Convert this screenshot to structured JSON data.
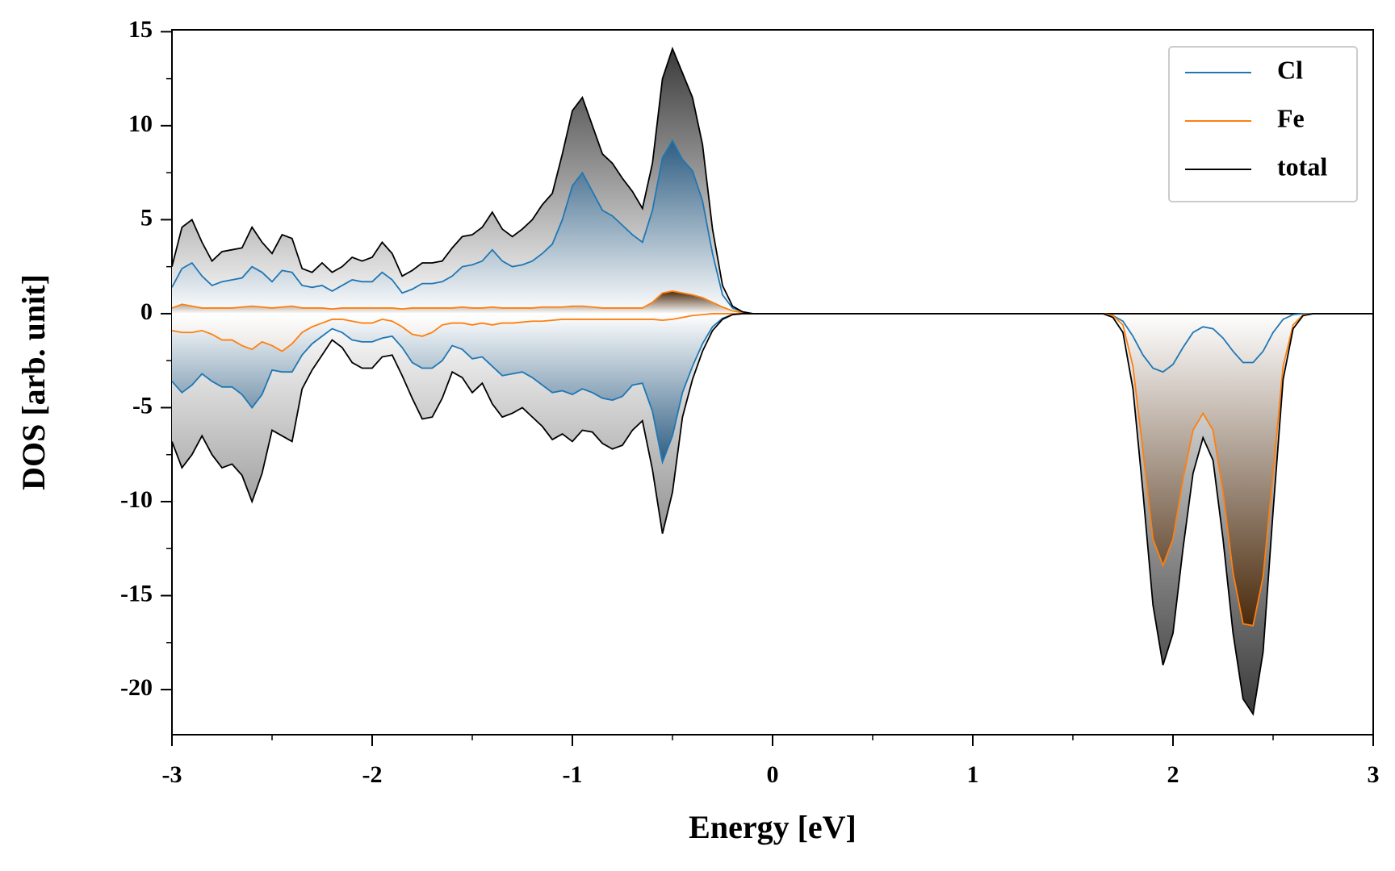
{
  "chart_data": {
    "type": "dos",
    "xlabel": "Energy [eV]",
    "ylabel": "DOS [arb. unit]",
    "xlim": [
      -3,
      3
    ],
    "ylim": [
      -22.4,
      15.1
    ],
    "xticks": [
      -3,
      -2,
      -1,
      0,
      1,
      2,
      3
    ],
    "xticks_minor": [
      -2.5,
      -1.5,
      -0.5,
      0.5,
      1.5,
      2.5
    ],
    "yticks": [
      -20,
      -15,
      -10,
      -5,
      0,
      5,
      10,
      15
    ],
    "yticks_minor": [
      -22.5,
      -17.5,
      -12.5,
      -7.5,
      -2.5,
      2.5,
      7.5,
      12.5
    ],
    "legend": "upper right",
    "x": [
      -3.0,
      -2.95,
      -2.9,
      -2.85,
      -2.8,
      -2.75,
      -2.7,
      -2.65,
      -2.6,
      -2.55,
      -2.5,
      -2.45,
      -2.4,
      -2.35,
      -2.3,
      -2.25,
      -2.2,
      -2.15,
      -2.1,
      -2.05,
      -2.0,
      -1.95,
      -1.9,
      -1.85,
      -1.8,
      -1.75,
      -1.7,
      -1.65,
      -1.6,
      -1.55,
      -1.5,
      -1.45,
      -1.4,
      -1.35,
      -1.3,
      -1.25,
      -1.2,
      -1.15,
      -1.1,
      -1.05,
      -1.0,
      -0.95,
      -0.9,
      -0.85,
      -0.8,
      -0.75,
      -0.7,
      -0.65,
      -0.6,
      -0.55,
      -0.5,
      -0.45,
      -0.4,
      -0.35,
      -0.3,
      -0.25,
      -0.2,
      -0.15,
      -0.1,
      -0.05,
      0.0,
      0.05,
      0.1,
      0.15,
      0.2,
      0.25,
      0.3,
      0.35,
      0.4,
      0.45,
      0.5,
      0.55,
      0.6,
      0.65,
      0.7,
      0.75,
      0.8,
      0.85,
      0.9,
      0.95,
      1.0,
      1.05,
      1.1,
      1.15,
      1.2,
      1.25,
      1.3,
      1.35,
      1.4,
      1.45,
      1.5,
      1.55,
      1.6,
      1.65,
      1.7,
      1.75,
      1.8,
      1.85,
      1.9,
      1.95,
      2.0,
      2.05,
      2.1,
      2.15,
      2.2,
      2.25,
      2.3,
      2.35,
      2.4,
      2.45,
      2.5,
      2.55,
      2.6,
      2.65,
      2.7,
      2.75,
      2.8,
      2.85,
      2.9,
      2.95,
      3.0
    ],
    "series": [
      {
        "name": "Cl",
        "color": "#1f77b4",
        "fill_color": "#2e5d82",
        "values": [
          1.4,
          2.4,
          2.7,
          2.0,
          1.5,
          1.7,
          1.8,
          1.9,
          2.5,
          2.2,
          1.7,
          2.3,
          2.2,
          1.5,
          1.4,
          1.5,
          1.2,
          1.5,
          1.8,
          1.7,
          1.7,
          2.2,
          1.8,
          1.1,
          1.3,
          1.6,
          1.6,
          1.7,
          2.0,
          2.5,
          2.6,
          2.8,
          3.4,
          2.8,
          2.5,
          2.6,
          2.8,
          3.2,
          3.7,
          5.0,
          6.8,
          7.5,
          6.5,
          5.5,
          5.2,
          4.7,
          4.2,
          3.8,
          5.5,
          8.3,
          9.2,
          8.2,
          7.6,
          6.0,
          3.2,
          1.0,
          0.3,
          0.1,
          0,
          0,
          0,
          0,
          0,
          0,
          0,
          0,
          0,
          0,
          0,
          0,
          0,
          0,
          0,
          0,
          0,
          0,
          0,
          0,
          0,
          0,
          0,
          0,
          0,
          0,
          0,
          0,
          0,
          0,
          0,
          0,
          0,
          0,
          0,
          0,
          0,
          0,
          0,
          0,
          0,
          0,
          0,
          0,
          0,
          0,
          0,
          0,
          0,
          0,
          0,
          0,
          0,
          0,
          0,
          0,
          0,
          0,
          0,
          0,
          0,
          0,
          0
        ],
        "values_down": [
          -3.6,
          -4.2,
          -3.8,
          -3.2,
          -3.6,
          -3.9,
          -3.9,
          -4.3,
          -5.0,
          -4.3,
          -3.0,
          -3.1,
          -3.1,
          -2.2,
          -1.6,
          -1.2,
          -0.8,
          -1.0,
          -1.4,
          -1.5,
          -1.5,
          -1.3,
          -1.2,
          -1.8,
          -2.6,
          -2.9,
          -2.9,
          -2.5,
          -1.7,
          -1.9,
          -2.4,
          -2.3,
          -2.8,
          -3.3,
          -3.2,
          -3.1,
          -3.4,
          -3.8,
          -4.2,
          -4.1,
          -4.3,
          -4.0,
          -4.2,
          -4.5,
          -4.6,
          -4.4,
          -3.8,
          -3.7,
          -5.2,
          -7.9,
          -6.5,
          -4.2,
          -2.8,
          -1.6,
          -0.7,
          -0.25,
          -0.05,
          0,
          0,
          0,
          0,
          0,
          0,
          0,
          0,
          0,
          0,
          0,
          0,
          0,
          0,
          0,
          0,
          0,
          0,
          0,
          0,
          0,
          0,
          0,
          0,
          0,
          0,
          0,
          0,
          0,
          0,
          0,
          0,
          0,
          0,
          0,
          0,
          0,
          -0.1,
          -0.4,
          -1.2,
          -2.2,
          -2.9,
          -3.1,
          -2.7,
          -1.8,
          -1.0,
          -0.7,
          -0.8,
          -1.3,
          -2.0,
          -2.6,
          -2.6,
          -2.0,
          -1.0,
          -0.3,
          -0.05,
          0,
          0,
          0,
          0,
          0,
          0,
          0,
          0
        ]
      },
      {
        "name": "Fe",
        "color": "#ff7f0e",
        "fill_color": "#4a2a0c",
        "values": [
          0.3,
          0.5,
          0.4,
          0.3,
          0.3,
          0.3,
          0.3,
          0.35,
          0.4,
          0.35,
          0.3,
          0.35,
          0.4,
          0.3,
          0.3,
          0.3,
          0.25,
          0.3,
          0.3,
          0.3,
          0.3,
          0.3,
          0.3,
          0.25,
          0.3,
          0.3,
          0.3,
          0.3,
          0.3,
          0.35,
          0.3,
          0.3,
          0.35,
          0.3,
          0.3,
          0.3,
          0.3,
          0.35,
          0.35,
          0.35,
          0.4,
          0.4,
          0.35,
          0.3,
          0.3,
          0.3,
          0.3,
          0.3,
          0.6,
          1.1,
          1.2,
          1.1,
          1.0,
          0.85,
          0.6,
          0.35,
          0.15,
          0.05,
          0,
          0,
          0,
          0,
          0,
          0,
          0,
          0,
          0,
          0,
          0,
          0,
          0,
          0,
          0,
          0,
          0,
          0,
          0,
          0,
          0,
          0,
          0,
          0,
          0,
          0,
          0,
          0,
          0,
          0,
          0,
          0,
          0,
          0,
          0,
          0,
          0,
          0,
          0,
          0,
          0,
          0,
          0,
          0,
          0,
          0,
          0,
          0,
          0,
          0,
          0,
          0,
          0,
          0,
          0,
          0,
          0,
          0,
          0,
          0,
          0,
          0,
          0
        ],
        "values_down": [
          -0.9,
          -1.0,
          -1.0,
          -0.9,
          -1.1,
          -1.4,
          -1.4,
          -1.7,
          -1.9,
          -1.5,
          -1.7,
          -2.0,
          -1.6,
          -1.0,
          -0.7,
          -0.5,
          -0.3,
          -0.3,
          -0.4,
          -0.5,
          -0.5,
          -0.3,
          -0.4,
          -0.7,
          -1.1,
          -1.2,
          -1.0,
          -0.6,
          -0.5,
          -0.5,
          -0.6,
          -0.5,
          -0.6,
          -0.5,
          -0.5,
          -0.45,
          -0.4,
          -0.4,
          -0.35,
          -0.3,
          -0.3,
          -0.3,
          -0.3,
          -0.3,
          -0.3,
          -0.3,
          -0.3,
          -0.3,
          -0.3,
          -0.35,
          -0.3,
          -0.2,
          -0.1,
          -0.05,
          0,
          0,
          0,
          0,
          0,
          0,
          0,
          0,
          0,
          0,
          0,
          0,
          0,
          0,
          0,
          0,
          0,
          0,
          0,
          0,
          0,
          0,
          0,
          0,
          0,
          0,
          0,
          0,
          0,
          0,
          0,
          0,
          0,
          0,
          0,
          0,
          0,
          0,
          0,
          0,
          -0.1,
          -0.6,
          -2.8,
          -7.3,
          -12.0,
          -13.4,
          -12.0,
          -8.8,
          -6.2,
          -5.3,
          -6.2,
          -9.5,
          -13.8,
          -16.5,
          -16.6,
          -14.0,
          -8.5,
          -2.8,
          -0.6,
          -0.05,
          0,
          0,
          0,
          0,
          0,
          0,
          0
        ]
      },
      {
        "name": "total",
        "color": "#000000",
        "fill_color": "#3a3a3a",
        "values": [
          2.5,
          4.6,
          5.0,
          3.8,
          2.8,
          3.3,
          3.4,
          3.5,
          4.6,
          3.8,
          3.2,
          4.2,
          4.0,
          2.4,
          2.2,
          2.7,
          2.2,
          2.5,
          3.0,
          2.8,
          3.0,
          3.8,
          3.2,
          2.0,
          2.3,
          2.7,
          2.7,
          2.8,
          3.5,
          4.1,
          4.2,
          4.6,
          5.4,
          4.5,
          4.1,
          4.5,
          5.0,
          5.8,
          6.4,
          8.5,
          10.8,
          11.5,
          10.0,
          8.5,
          8.0,
          7.2,
          6.5,
          5.6,
          8.0,
          12.5,
          14.1,
          12.8,
          11.5,
          9.0,
          4.5,
          1.5,
          0.4,
          0.1,
          0,
          0,
          0,
          0,
          0,
          0,
          0,
          0,
          0,
          0,
          0,
          0,
          0,
          0,
          0,
          0,
          0,
          0,
          0,
          0,
          0,
          0,
          0,
          0,
          0,
          0,
          0,
          0,
          0,
          0,
          0,
          0,
          0,
          0,
          0,
          0,
          0,
          0,
          0,
          0,
          0,
          0,
          0,
          0,
          0,
          0,
          0,
          0,
          0,
          0,
          0,
          0,
          0,
          0,
          0,
          0,
          0,
          0,
          0,
          0,
          0,
          0,
          0
        ],
        "values_down": [
          -6.8,
          -8.2,
          -7.5,
          -6.5,
          -7.5,
          -8.2,
          -8.0,
          -8.6,
          -10.0,
          -8.5,
          -6.2,
          -6.5,
          -6.8,
          -4.0,
          -3.0,
          -2.2,
          -1.4,
          -1.8,
          -2.6,
          -2.9,
          -2.9,
          -2.3,
          -2.2,
          -3.3,
          -4.5,
          -5.6,
          -5.5,
          -4.5,
          -3.1,
          -3.4,
          -4.2,
          -3.7,
          -4.8,
          -5.5,
          -5.3,
          -5.0,
          -5.5,
          -6.0,
          -6.7,
          -6.4,
          -6.8,
          -6.2,
          -6.3,
          -6.9,
          -7.2,
          -7.0,
          -6.2,
          -5.7,
          -8.3,
          -11.7,
          -9.5,
          -5.5,
          -3.5,
          -2.0,
          -0.9,
          -0.3,
          -0.05,
          0,
          0,
          0,
          0,
          0,
          0,
          0,
          0,
          0,
          0,
          0,
          0,
          0,
          0,
          0,
          0,
          0,
          0,
          0,
          0,
          0,
          0,
          0,
          0,
          0,
          0,
          0,
          0,
          0,
          0,
          0,
          0,
          0,
          0,
          0,
          0,
          0,
          -0.2,
          -1.0,
          -4.0,
          -9.5,
          -15.5,
          -18.7,
          -17.0,
          -12.5,
          -8.5,
          -6.6,
          -7.8,
          -12.0,
          -17.0,
          -20.5,
          -21.3,
          -18.0,
          -10.5,
          -3.5,
          -0.8,
          -0.1,
          0,
          0,
          0,
          0,
          0,
          0,
          0
        ]
      }
    ]
  }
}
